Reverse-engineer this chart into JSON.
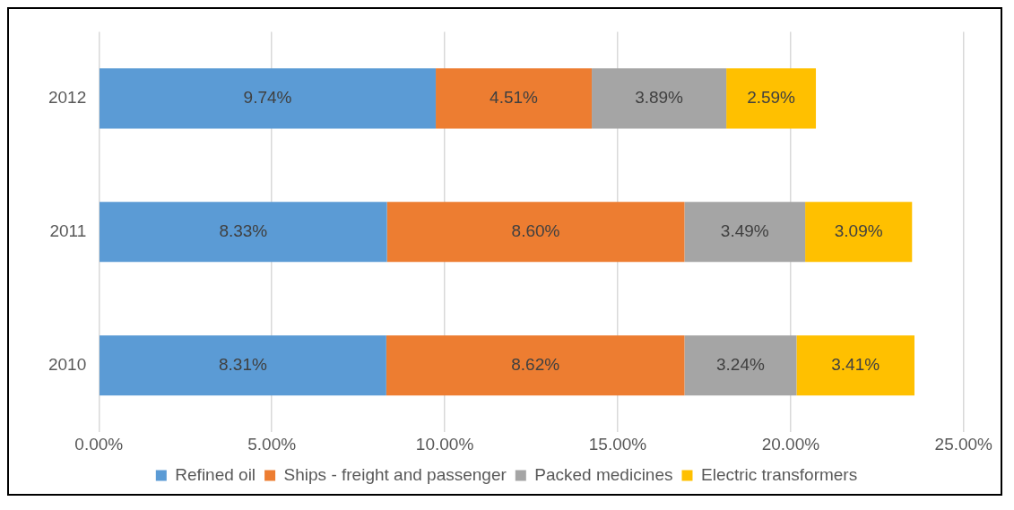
{
  "chart_data": {
    "type": "bar",
    "orientation": "horizontal",
    "stacked": true,
    "categories": [
      "2012",
      "2011",
      "2010"
    ],
    "series": [
      {
        "name": "Refined oil",
        "color": "#5b9bd5",
        "values": [
          9.74,
          8.33,
          8.31
        ],
        "value_labels": [
          "9.74%",
          "8.33%",
          "8.31%"
        ]
      },
      {
        "name": "Ships - freight and passenger",
        "color": "#ed7d31",
        "values": [
          4.51,
          8.6,
          8.62
        ],
        "value_labels": [
          "4.51%",
          "8.60%",
          "8.62%"
        ]
      },
      {
        "name": "Packed medicines",
        "color": "#a5a5a5",
        "values": [
          3.89,
          3.49,
          3.24
        ],
        "value_labels": [
          "3.89%",
          "3.49%",
          "3.24%"
        ]
      },
      {
        "name": "Electric transformers",
        "color": "#ffc000",
        "values": [
          2.59,
          3.09,
          3.41
        ],
        "value_labels": [
          "2.59%",
          "3.09%",
          "3.41%"
        ]
      }
    ],
    "xlim": [
      0,
      25
    ],
    "xticks": [
      {
        "value": 0,
        "label": "0.00%"
      },
      {
        "value": 5,
        "label": "5.00%"
      },
      {
        "value": 10,
        "label": "10.00%"
      },
      {
        "value": 15,
        "label": "15.00%"
      },
      {
        "value": 20,
        "label": "20.00%"
      },
      {
        "value": 25,
        "label": "25.00%"
      }
    ],
    "grid": "x",
    "legend": "bottom"
  }
}
